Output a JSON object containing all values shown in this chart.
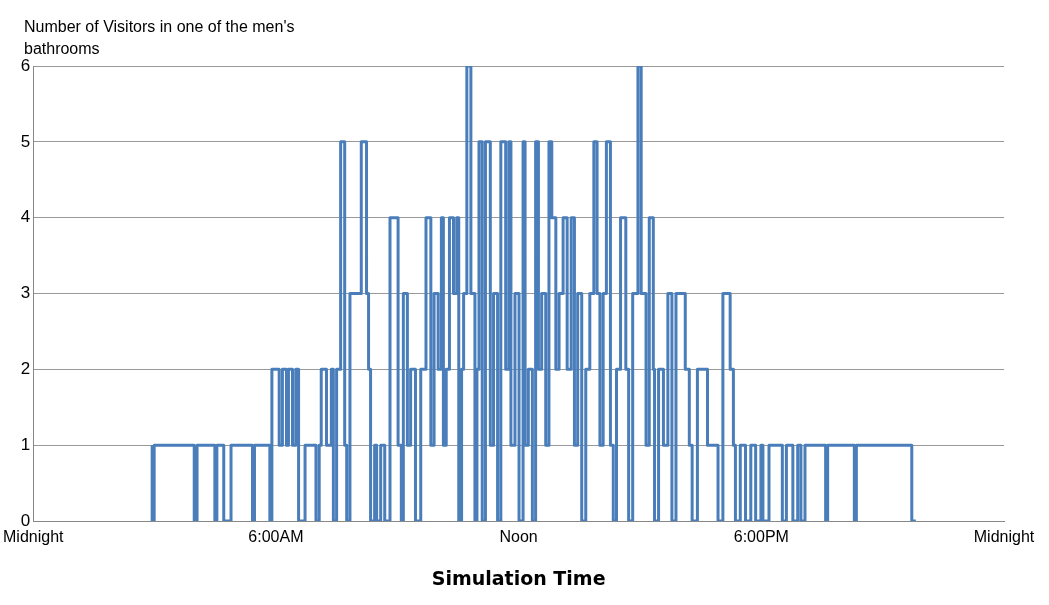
{
  "chart_data": {
    "type": "step",
    "ylabel": "Number of Visitors in one of the men's bathrooms",
    "xlabel": "Simulation Time",
    "xlim": [
      0,
      24
    ],
    "xticks": [
      {
        "value": 0,
        "label": "Midnight"
      },
      {
        "value": 6,
        "label": "6:00AM"
      },
      {
        "value": 12,
        "label": "Noon"
      },
      {
        "value": 18,
        "label": "6:00PM"
      },
      {
        "value": 24,
        "label": "Midnight"
      }
    ],
    "ylim": [
      0,
      6
    ],
    "yticks": [
      0,
      1,
      2,
      3,
      4,
      5,
      6
    ],
    "grid": "y",
    "legend": false,
    "marker": "none",
    "line_style": "solid",
    "series": [
      {
        "color": "#4a7ebb",
        "x": [
          2.94,
          2.99,
          3.98,
          4.05,
          4.49,
          4.54,
          4.71,
          4.89,
          5.42,
          5.47,
          5.85,
          5.9,
          6.08,
          6.16,
          6.26,
          6.31,
          6.41,
          6.49,
          6.56,
          6.72,
          6.99,
          7.07,
          7.12,
          7.25,
          7.37,
          7.42,
          7.5,
          7.6,
          7.7,
          7.75,
          7.83,
          8.11,
          8.24,
          8.29,
          8.34,
          8.44,
          8.49,
          8.59,
          8.69,
          8.82,
          9.02,
          9.1,
          9.15,
          9.25,
          9.33,
          9.45,
          9.58,
          9.71,
          9.83,
          9.91,
          10.01,
          10.09,
          10.14,
          10.21,
          10.29,
          10.39,
          10.47,
          10.52,
          10.59,
          10.64,
          10.72,
          10.82,
          10.92,
          10.97,
          11.02,
          11.1,
          11.18,
          11.3,
          11.38,
          11.48,
          11.56,
          11.68,
          11.76,
          11.81,
          11.91,
          12.01,
          12.11,
          12.16,
          12.24,
          12.34,
          12.42,
          12.49,
          12.57,
          12.67,
          12.75,
          12.82,
          12.92,
          13.0,
          13.1,
          13.2,
          13.3,
          13.38,
          13.46,
          13.56,
          13.66,
          13.76,
          13.86,
          13.94,
          14.01,
          14.09,
          14.17,
          14.27,
          14.34,
          14.42,
          14.52,
          14.65,
          14.72,
          14.82,
          14.95,
          15.03,
          15.15,
          15.23,
          15.33,
          15.36,
          15.46,
          15.58,
          15.69,
          15.79,
          15.89,
          16.12,
          16.22,
          16.29,
          16.42,
          16.67,
          16.93,
          17.05,
          17.23,
          17.31,
          17.36,
          17.48,
          17.61,
          17.74,
          17.86,
          17.99,
          18.04,
          18.19,
          18.52,
          18.62,
          18.78,
          18.9,
          18.98,
          19.08,
          19.59,
          19.64,
          20.3,
          20.35,
          21.72,
          21.82
        ],
        "values": [
          1,
          0,
          1,
          0,
          1,
          0,
          1,
          0,
          1,
          0,
          1,
          0,
          2,
          1,
          2,
          1,
          2,
          1,
          2,
          0,
          1,
          0,
          1,
          2,
          1,
          2,
          0,
          2,
          5,
          1,
          0,
          3,
          5,
          3,
          2,
          0,
          1,
          0,
          1,
          0,
          4,
          1,
          0,
          3,
          1,
          2,
          0,
          2,
          4,
          1,
          3,
          2,
          4,
          1,
          2,
          4,
          3,
          4,
          0,
          2,
          3,
          6,
          3,
          0,
          2,
          5,
          0,
          5,
          1,
          3,
          0,
          5,
          2,
          5,
          1,
          3,
          0,
          5,
          1,
          2,
          0,
          5,
          2,
          3,
          1,
          5,
          4,
          2,
          3,
          4,
          2,
          4,
          1,
          3,
          0,
          2,
          3,
          5,
          3,
          1,
          3,
          5,
          1,
          0,
          2,
          4,
          2,
          0,
          3,
          6,
          3,
          1,
          4,
          2,
          0,
          2,
          1,
          3,
          0,
          3,
          2,
          1,
          0,
          2,
          1,
          0,
          3,
          2,
          1,
          0,
          1,
          0,
          1,
          0,
          1,
          0,
          1,
          0,
          1,
          0,
          1,
          0,
          1,
          0,
          1,
          0,
          1,
          0
        ]
      }
    ]
  }
}
